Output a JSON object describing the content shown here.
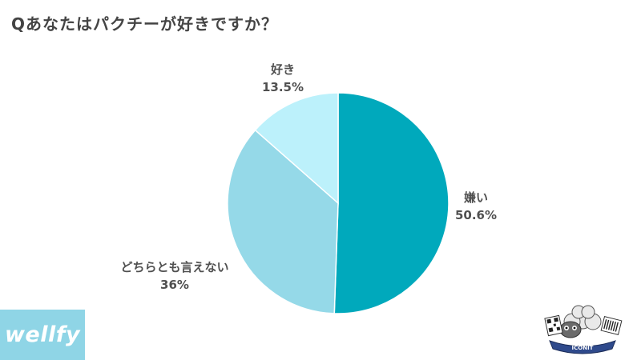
{
  "header": {
    "title": "Qあなたはパクチーが好きですか？"
  },
  "chart_data": {
    "type": "pie",
    "title": "Qあなたはパクチーが好きですか？",
    "start": "12 o'clock",
    "direction": "clockwise",
    "slices": [
      {
        "label": "嫌い",
        "value": 50.6,
        "value_label": "50.6%",
        "color": "#00a9bc"
      },
      {
        "label": "どちらとも言えない",
        "value": 36,
        "value_label": "36%",
        "color": "#95d9e8"
      },
      {
        "label": "好き",
        "value": 13.5,
        "value_label": "13.5%",
        "color": "#bcf1fb"
      }
    ]
  },
  "branding": {
    "left_logo": "wellfy",
    "right_logo_text": "ICONIT",
    "right_logo_icon": "sheep-mascot-icon"
  }
}
